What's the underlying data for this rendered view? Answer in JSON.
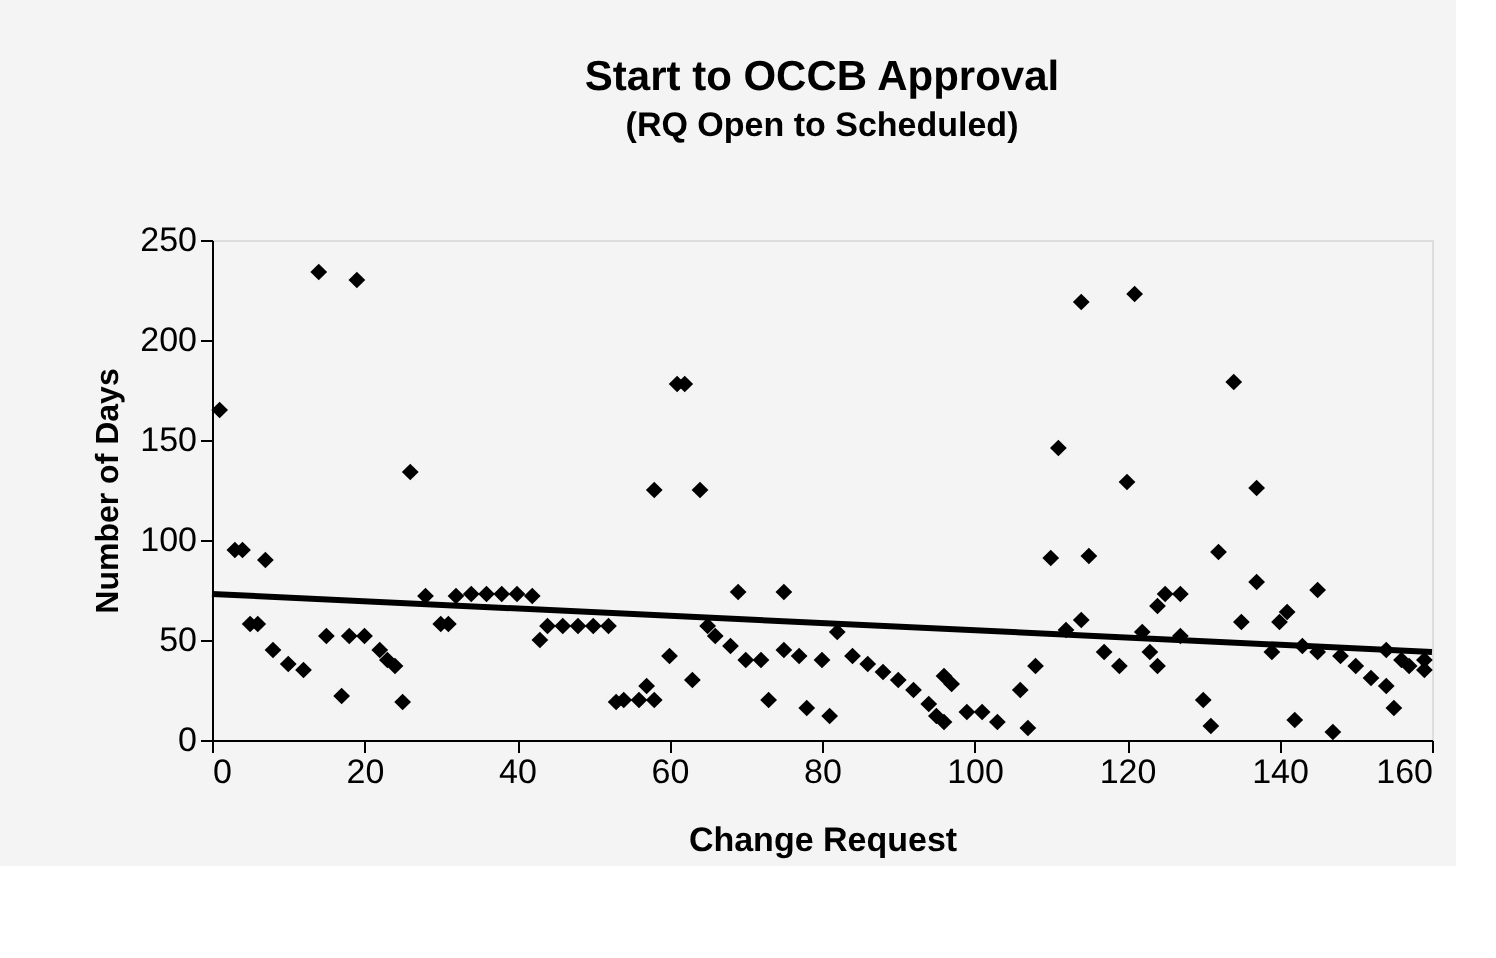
{
  "chart_data": {
    "type": "scatter",
    "title": "Start to OCCB Approval",
    "subtitle": "(RQ Open to Scheduled)",
    "xlabel": "Change Request",
    "ylabel": "Number of Days",
    "xlim": [
      0,
      160
    ],
    "xticks": [
      0,
      20,
      40,
      60,
      80,
      100,
      120,
      140,
      160
    ],
    "ylim": [
      0,
      250
    ],
    "yticks": [
      0,
      50,
      100,
      150,
      200,
      250
    ],
    "grid": false,
    "marker": "diamond",
    "series": [
      {
        "color": "#000000",
        "x": [
          1,
          3,
          4,
          7,
          5,
          6,
          8,
          10,
          12,
          14,
          19,
          15,
          18,
          20,
          17,
          22,
          23,
          24,
          25,
          26,
          28,
          30,
          31,
          32,
          34,
          36,
          38,
          40,
          42,
          43,
          44,
          46,
          48,
          50,
          52,
          53,
          54,
          56,
          58,
          57,
          58,
          64,
          61,
          62,
          60,
          63,
          65,
          66,
          68,
          70,
          72,
          69,
          75,
          73,
          75,
          77,
          80,
          78,
          81,
          82,
          84,
          86,
          88,
          90,
          92,
          94,
          95,
          96,
          96,
          97,
          99,
          101,
          103,
          106,
          107,
          108,
          110,
          111,
          112,
          114,
          115,
          114,
          117,
          119,
          120,
          121,
          122,
          123,
          124,
          124,
          125,
          127,
          127,
          130,
          131,
          132,
          134,
          135,
          137,
          137,
          139,
          140,
          141,
          142,
          143,
          145,
          145,
          147,
          148,
          150,
          152,
          154,
          155,
          154,
          156,
          157,
          159,
          159
        ],
        "values": [
          165,
          95,
          95,
          90,
          58,
          58,
          45,
          38,
          35,
          234,
          230,
          52,
          52,
          52,
          22,
          45,
          40,
          37,
          19,
          134,
          72,
          58,
          58,
          72,
          73,
          73,
          73,
          73,
          72,
          50,
          57,
          57,
          57,
          57,
          57,
          19,
          20,
          20,
          20,
          27,
          125,
          125,
          178,
          178,
          42,
          30,
          57,
          52,
          47,
          40,
          40,
          74,
          74,
          20,
          45,
          42,
          40,
          16,
          12,
          54,
          42,
          38,
          34,
          30,
          25,
          18,
          12,
          9,
          32,
          28,
          14,
          14,
          9,
          25,
          6,
          37,
          91,
          146,
          55,
          60,
          92,
          219,
          44,
          37,
          129,
          223,
          54,
          44,
          37,
          67,
          73,
          73,
          52,
          20,
          7,
          94,
          179,
          59,
          79,
          126,
          44,
          59,
          64,
          10,
          47,
          75,
          44,
          4,
          42,
          37,
          31,
          27,
          16,
          45,
          40,
          37,
          40,
          35
        ]
      },
      {
        "type": "line",
        "color": "#000000",
        "line_style": "solid",
        "marker": "none",
        "x": [
          0,
          160
        ],
        "values": [
          73,
          44
        ]
      }
    ]
  }
}
